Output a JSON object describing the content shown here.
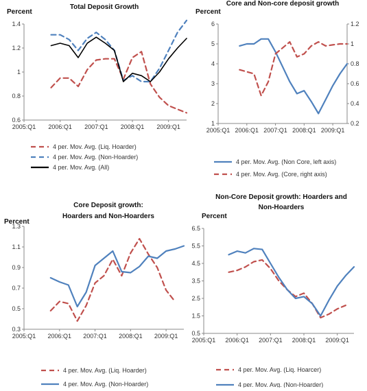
{
  "chart_data": [
    {
      "type": "line",
      "title": "Total Deposit Growth",
      "ylabel": "Percent",
      "x_ticks": [
        "2005:Q1",
        "2006:Q1",
        "2007:Q1",
        "2008:Q1",
        "2009:Q1"
      ],
      "x_range": [
        2005.0,
        2009.5
      ],
      "ylim": [
        0.6,
        1.4
      ],
      "y_ticks": [
        "0.6",
        "0.8",
        "1",
        "1.2",
        "1.4"
      ],
      "grid": false,
      "legend_position": "bottom",
      "series": [
        {
          "name": "4 per. Mov. Avg. (Liq. Hoarder)",
          "color": "#c0504d",
          "dash": "dashed",
          "x": [
            2005.75,
            2006.0,
            2006.25,
            2006.5,
            2006.75,
            2007.0,
            2007.25,
            2007.5,
            2007.75,
            2008.0,
            2008.25,
            2008.5,
            2008.75,
            2009.0,
            2009.25,
            2009.5
          ],
          "y": [
            0.87,
            0.95,
            0.95,
            0.88,
            1.02,
            1.1,
            1.11,
            1.11,
            0.94,
            1.12,
            1.17,
            0.9,
            0.79,
            0.72,
            0.69,
            0.66
          ]
        },
        {
          "name": "4 per. Mov. Avg. (Non-Hoarder)",
          "color": "#4f81bd",
          "dash": "dashed",
          "x": [
            2005.75,
            2006.0,
            2006.25,
            2006.5,
            2006.75,
            2007.0,
            2007.25,
            2007.5,
            2007.75,
            2008.0,
            2008.25,
            2008.5,
            2008.75,
            2009.0,
            2009.25,
            2009.5
          ],
          "y": [
            1.31,
            1.31,
            1.27,
            1.18,
            1.28,
            1.33,
            1.27,
            1.18,
            0.93,
            0.97,
            0.92,
            0.92,
            1.03,
            1.18,
            1.33,
            1.43
          ]
        },
        {
          "name": "4 per. Mov. Avg. (All)",
          "color": "#000000",
          "dash": "solid",
          "x": [
            2005.75,
            2006.0,
            2006.25,
            2006.5,
            2006.75,
            2007.0,
            2007.25,
            2007.5,
            2007.75,
            2008.0,
            2008.25,
            2008.5,
            2008.75,
            2009.0,
            2009.25,
            2009.5
          ],
          "y": [
            1.22,
            1.24,
            1.22,
            1.12,
            1.24,
            1.29,
            1.24,
            1.18,
            0.92,
            0.99,
            0.97,
            0.92,
            1.0,
            1.11,
            1.2,
            1.28
          ]
        }
      ]
    },
    {
      "type": "line",
      "title": "Core and Non-core deposit growth",
      "ylabel": "Percent",
      "x_ticks": [
        "2005:Q1",
        "2006:Q1",
        "2007:Q1",
        "2008:Q1",
        "2009:Q1"
      ],
      "x_range": [
        2005.0,
        2009.5
      ],
      "ylim_left": [
        1,
        6
      ],
      "y_ticks_left": [
        "1",
        "2",
        "3",
        "4",
        "5",
        "6"
      ],
      "ylim_right": [
        0.2,
        1.2
      ],
      "y_ticks_right": [
        "0.2",
        "0.4",
        "0.6",
        "0.8",
        "1",
        "1.2"
      ],
      "grid": false,
      "legend_position": "bottom",
      "series": [
        {
          "name": "4 per. Mov. Avg. (Non Core, left axis)",
          "color": "#4f81bd",
          "dash": "solid",
          "axis": "left",
          "x": [
            2005.75,
            2006.0,
            2006.25,
            2006.5,
            2006.75,
            2007.0,
            2007.25,
            2007.5,
            2007.75,
            2008.0,
            2008.25,
            2008.5,
            2008.75,
            2009.0,
            2009.25,
            2009.5
          ],
          "y": [
            4.9,
            5.0,
            5.0,
            5.25,
            5.25,
            4.6,
            3.85,
            3.1,
            2.5,
            2.65,
            2.1,
            1.5,
            2.2,
            2.9,
            3.5,
            4.0
          ]
        },
        {
          "name": "4 per. Mov. Avg. (Core, right axis)",
          "color": "#c0504d",
          "dash": "dashed",
          "axis": "right",
          "x": [
            2005.75,
            2006.0,
            2006.25,
            2006.5,
            2006.75,
            2007.0,
            2007.25,
            2007.5,
            2007.75,
            2008.0,
            2008.25,
            2008.5,
            2008.75,
            2009.0,
            2009.25,
            2009.5
          ],
          "y": [
            0.74,
            0.72,
            0.7,
            0.48,
            0.62,
            0.9,
            0.96,
            1.02,
            0.87,
            0.9,
            0.98,
            1.02,
            0.98,
            0.99,
            1.0,
            1.0
          ]
        }
      ]
    },
    {
      "type": "line",
      "title": "Core Deposit growth: Hoarders and Non-Hoarders",
      "title_lines": [
        "Core Deposit growth:",
        "Hoarders and Non-Hoarders"
      ],
      "ylabel": "Percent",
      "x_ticks": [
        "2005:Q1",
        "2006:Q1",
        "2007:Q1",
        "2008:Q1",
        "2009:Q1"
      ],
      "x_range": [
        2005.0,
        2009.5
      ],
      "ylim": [
        0.3,
        1.3
      ],
      "y_ticks": [
        "0.3",
        "0.5",
        "0.7",
        "0.9",
        "1.1",
        "1.3"
      ],
      "grid": false,
      "legend_position": "bottom",
      "series": [
        {
          "name": "4 per. Mov. Avg. (Liq. Hoarder)",
          "color": "#c0504d",
          "dash": "dashed",
          "x": [
            2005.75,
            2006.0,
            2006.25,
            2006.5,
            2006.75,
            2007.0,
            2007.25,
            2007.5,
            2007.75,
            2008.0,
            2008.25,
            2008.5,
            2008.75,
            2009.0,
            2009.25
          ],
          "y": [
            0.48,
            0.57,
            0.55,
            0.38,
            0.53,
            0.75,
            0.82,
            0.98,
            0.82,
            1.04,
            1.18,
            1.03,
            0.9,
            0.68,
            0.57
          ]
        },
        {
          "name": "4 per. Mov. Avg. (Non-Hoarder)",
          "color": "#4f81bd",
          "dash": "solid",
          "x": [
            2005.75,
            2006.0,
            2006.25,
            2006.5,
            2006.75,
            2007.0,
            2007.25,
            2007.5,
            2007.75,
            2008.0,
            2008.25,
            2008.5,
            2008.75,
            2009.0,
            2009.25,
            2009.5
          ],
          "y": [
            0.8,
            0.76,
            0.73,
            0.52,
            0.66,
            0.92,
            0.99,
            1.06,
            0.86,
            0.85,
            0.91,
            1.01,
            0.99,
            1.06,
            1.08,
            1.11
          ]
        }
      ]
    },
    {
      "type": "line",
      "title": "Non-Core Deposit growth: Hoarders and Non-Hoarders",
      "title_lines": [
        "Non-Core Deposit growth: Hoarders and",
        "Non-Hoarders"
      ],
      "ylabel": "Percent",
      "x_ticks": [
        "2005:Q1",
        "2006:Q1",
        "2007:Q1",
        "2008:Q1",
        "2009:Q1"
      ],
      "x_range": [
        2005.0,
        2009.5
      ],
      "ylim": [
        0.5,
        6.5
      ],
      "y_ticks": [
        "0.5",
        "1.5",
        "2.5",
        "3.5",
        "4.5",
        "5.5",
        "6.5"
      ],
      "grid": false,
      "legend_position": "bottom",
      "series": [
        {
          "name": "4 per. Mov. Avg. (Liq. Hoarcer)",
          "color": "#c0504d",
          "dash": "dashed",
          "x": [
            2005.75,
            2006.0,
            2006.25,
            2006.5,
            2006.75,
            2007.0,
            2007.25,
            2007.5,
            2007.75,
            2008.0,
            2008.25,
            2008.5,
            2008.75,
            2009.0,
            2009.25
          ],
          "y": [
            4.0,
            4.1,
            4.3,
            4.6,
            4.7,
            4.2,
            3.5,
            3.0,
            2.6,
            2.8,
            2.2,
            1.4,
            1.6,
            1.9,
            2.1
          ]
        },
        {
          "name": "4 per. Mov. Avg. (Non-Hoarder)",
          "color": "#4f81bd",
          "dash": "solid",
          "x": [
            2005.75,
            2006.0,
            2006.25,
            2006.5,
            2006.75,
            2007.0,
            2007.25,
            2007.5,
            2007.75,
            2008.0,
            2008.25,
            2008.5,
            2008.75,
            2009.0,
            2009.25,
            2009.5
          ],
          "y": [
            5.0,
            5.2,
            5.1,
            5.35,
            5.3,
            4.5,
            3.7,
            3.0,
            2.5,
            2.6,
            2.2,
            1.5,
            2.4,
            3.2,
            3.8,
            4.3
          ]
        }
      ]
    }
  ]
}
